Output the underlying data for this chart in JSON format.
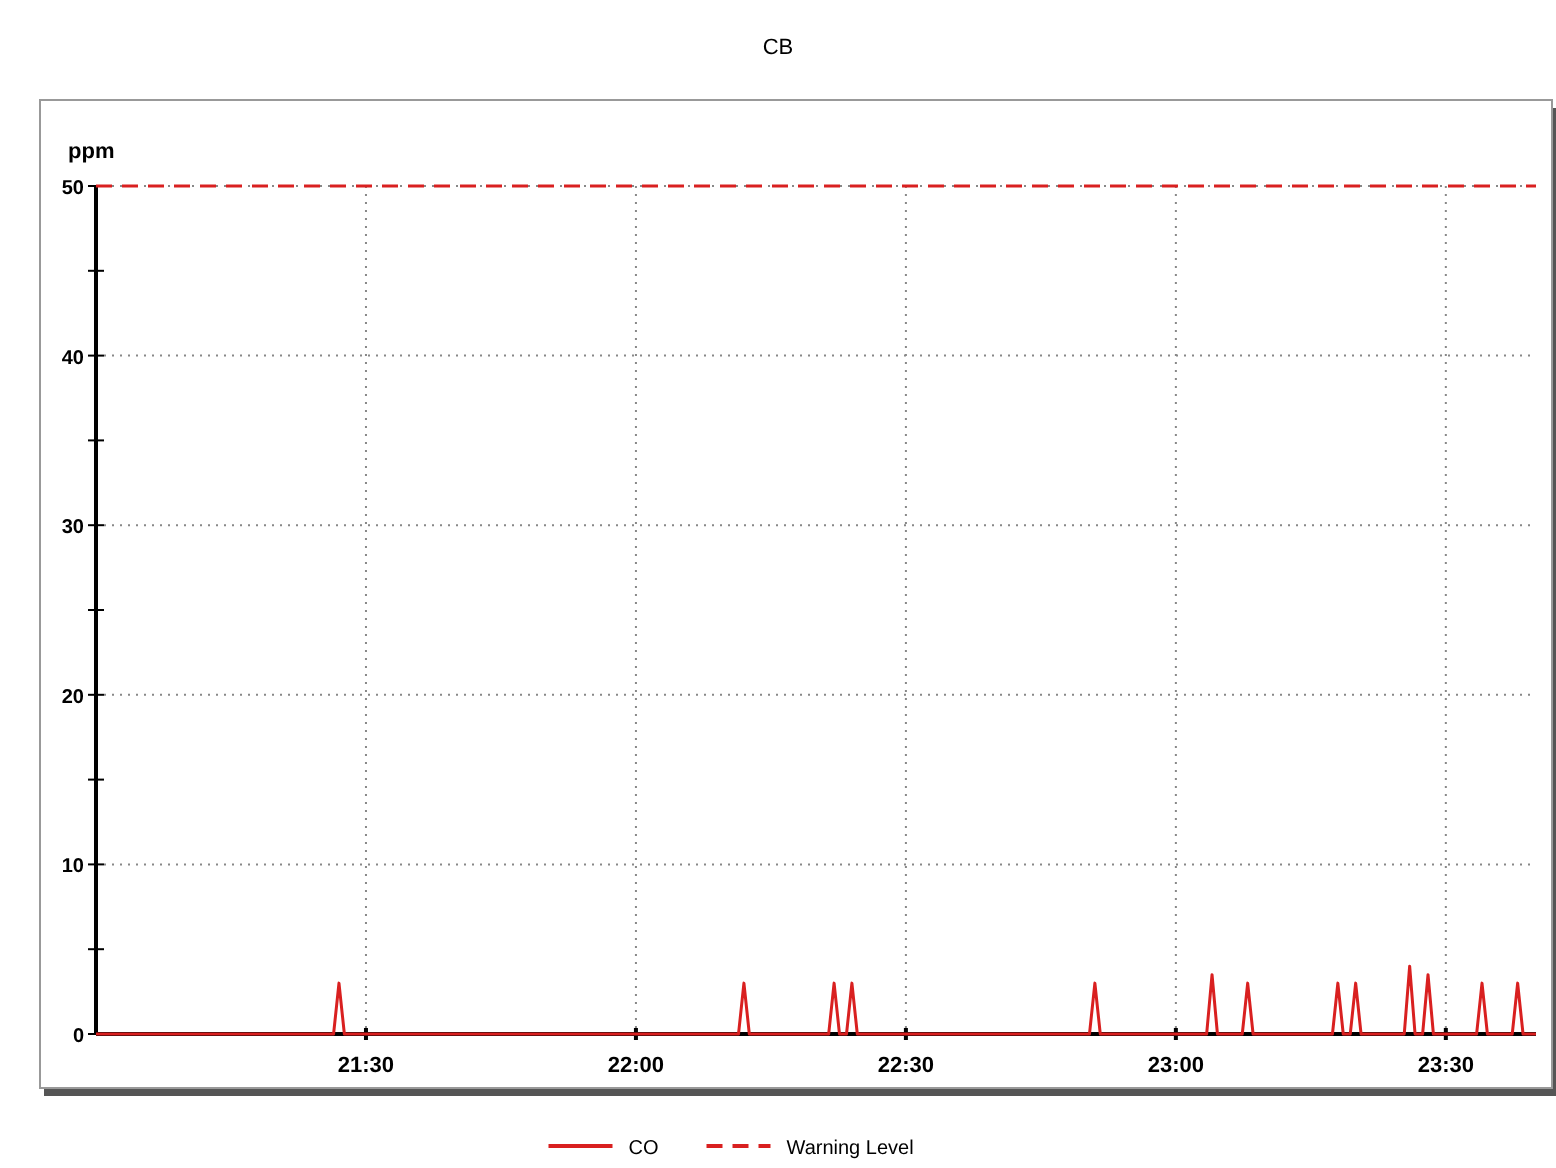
{
  "chart_data": {
    "type": "line",
    "title": "CB",
    "ylabel": "ppm",
    "xlim": [
      21,
      23.667
    ],
    "xticks": [
      {
        "value": 21.5,
        "label": "21:30"
      },
      {
        "value": 22,
        "label": "22:00"
      },
      {
        "value": 22.5,
        "label": "22:30"
      },
      {
        "value": 23,
        "label": "23:00"
      },
      {
        "value": 23.5,
        "label": "23:30"
      }
    ],
    "ylim": [
      0,
      50
    ],
    "yticks": [
      0,
      {
        "value": 5,
        "label": null
      },
      10,
      {
        "value": 15,
        "label": null
      },
      20,
      {
        "value": 25,
        "label": null
      },
      30,
      {
        "value": 35,
        "label": null
      },
      40,
      {
        "value": 45,
        "label": null
      },
      50
    ],
    "grid": true,
    "legend": "bottom",
    "marker": "none",
    "line_style": "solid",
    "series": [
      {
        "name": "CO",
        "color": "#d92020",
        "x": [
          21,
          21.44,
          21.45,
          21.46,
          22.19,
          22.2,
          22.21,
          22.357,
          22.367,
          22.377,
          22.39,
          22.4,
          22.41,
          22.84,
          22.85,
          22.86,
          23.057,
          23.067,
          23.077,
          23.123,
          23.133,
          23.143,
          23.29,
          23.3,
          23.31,
          23.323,
          23.333,
          23.343,
          23.423,
          23.433,
          23.443,
          23.457,
          23.467,
          23.477,
          23.557,
          23.567,
          23.577,
          23.623,
          23.633,
          23.643,
          23.667
        ],
        "values": [
          0,
          0,
          3,
          0,
          0,
          3,
          0,
          0,
          3,
          0,
          0,
          3,
          0,
          0,
          3,
          0,
          0,
          3.5,
          0,
          0,
          3,
          0,
          0,
          3,
          0,
          0,
          3,
          0,
          0,
          4,
          0,
          0,
          3.5,
          0,
          0,
          3,
          0,
          0,
          3,
          0,
          0
        ]
      }
    ],
    "ref_lines": [
      {
        "axis": "y",
        "value": 50,
        "label": "Warning Level",
        "color": "#d92020",
        "line_style": "dashed"
      }
    ]
  }
}
